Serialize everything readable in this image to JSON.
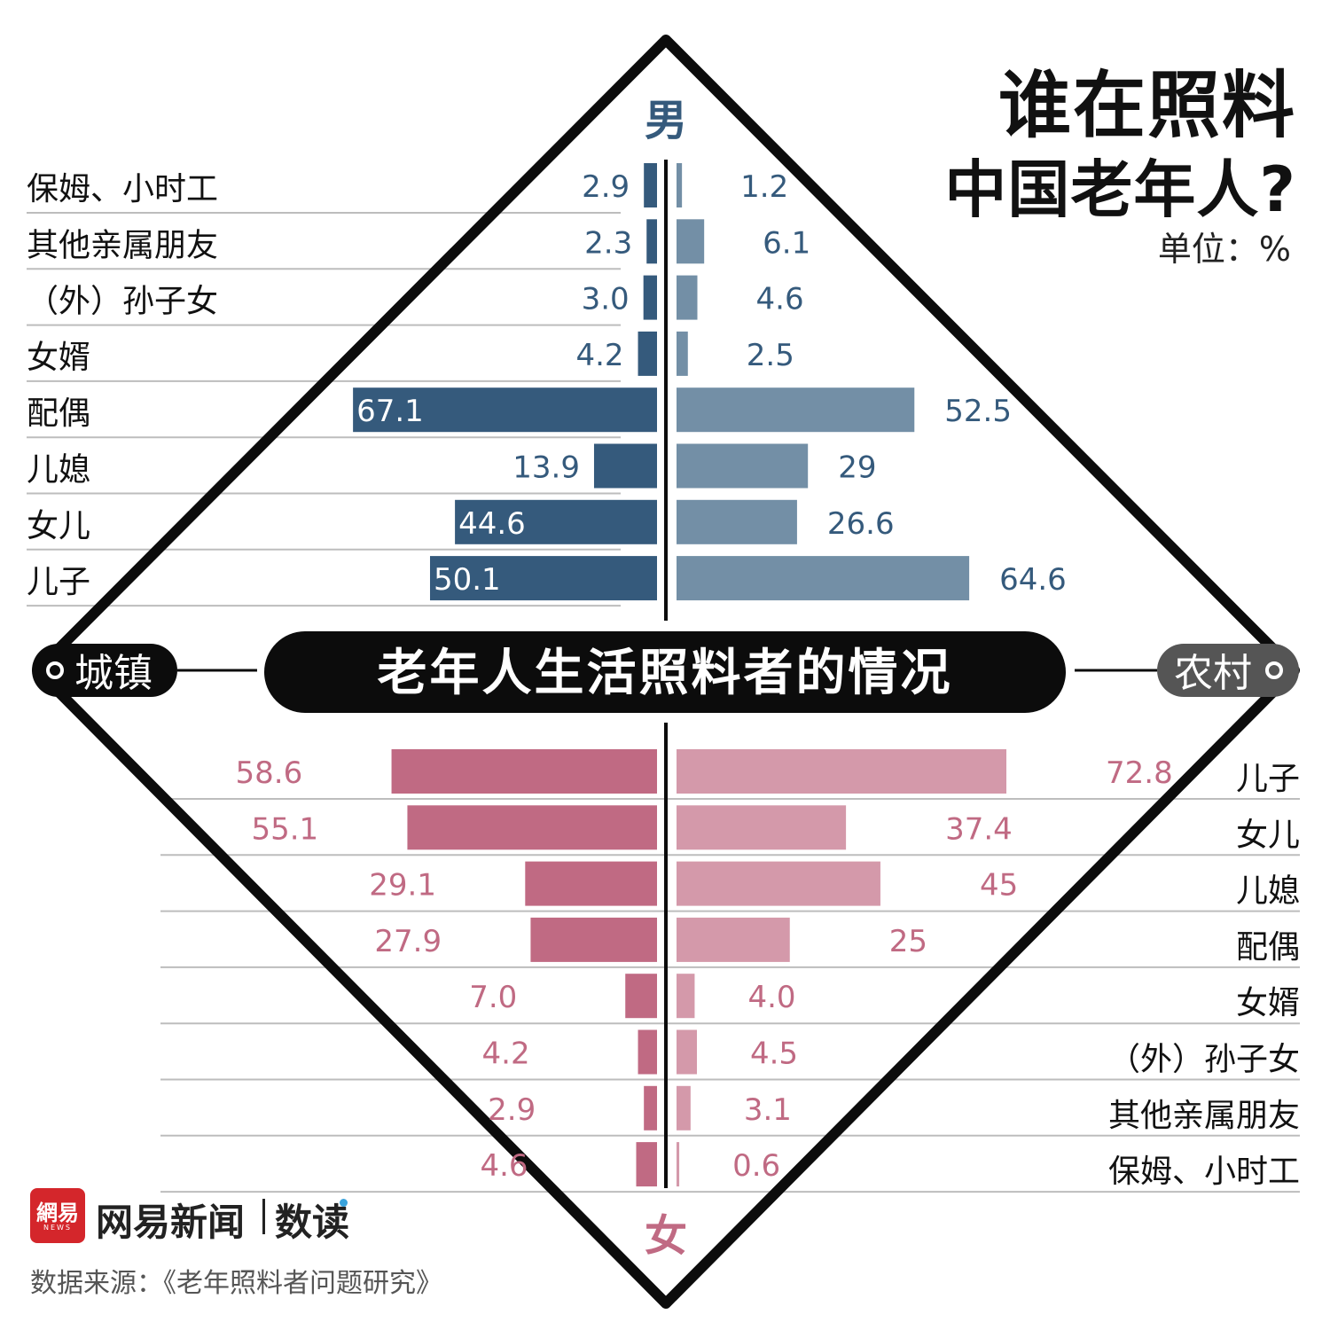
{
  "title_line1": "谁在照料",
  "title_line2": "中国老年人?",
  "unit": "单位：%",
  "center_label": "老年人生活照料者的情况",
  "left_tag": "城镇",
  "right_tag": "农村",
  "top_tag": "男",
  "bottom_tag": "女",
  "brand": "网易新闻",
  "brand2": "数读",
  "logo_text": "網易",
  "logo_sub": "NEWS",
  "source": "数据来源：《老年照料者问题研究》",
  "colors": {
    "male_urban": "#355a7c",
    "male_rural": "#738fa6",
    "female_urban": "#c06a83",
    "female_rural": "#d499aa",
    "male_text": "#355a7c",
    "female_text": "#c06a83"
  },
  "chart_data": [
    {
      "type": "bar",
      "orientation": "horizontal",
      "title": "男",
      "categories": [
        "保姆、小时工",
        "其他亲属朋友",
        "（外）孙子女",
        "女婿",
        "配偶",
        "儿媳",
        "女儿",
        "儿子"
      ],
      "value_labels": {
        "城镇": [
          "2.9",
          "2.3",
          "3.0",
          "4.2",
          "67.1",
          "13.9",
          "44.6",
          "50.1"
        ],
        "农村": [
          "1.2",
          "6.1",
          "4.6",
          "2.5",
          "52.5",
          "29",
          "26.6",
          "64.6"
        ]
      },
      "series": [
        {
          "name": "城镇",
          "values": [
            2.9,
            2.3,
            3.0,
            4.2,
            67.1,
            13.9,
            44.6,
            50.1
          ]
        },
        {
          "name": "农村",
          "values": [
            1.2,
            6.1,
            4.6,
            2.5,
            52.5,
            29,
            26.6,
            64.6
          ]
        }
      ]
    },
    {
      "type": "bar",
      "orientation": "horizontal",
      "title": "女",
      "categories": [
        "儿子",
        "女儿",
        "儿媳",
        "配偶",
        "女婿",
        "（外）孙子女",
        "其他亲属朋友",
        "保姆、小时工"
      ],
      "value_labels": {
        "城镇": [
          "58.6",
          "55.1",
          "29.1",
          "27.9",
          "7.0",
          "4.2",
          "2.9",
          "4.6"
        ],
        "农村": [
          "72.8",
          "37.4",
          "45",
          "25",
          "4.0",
          "4.5",
          "3.1",
          "0.6"
        ]
      },
      "series": [
        {
          "name": "城镇",
          "values": [
            58.6,
            55.1,
            29.1,
            27.9,
            7.0,
            4.2,
            2.9,
            4.6
          ]
        },
        {
          "name": "农村",
          "values": [
            72.8,
            37.4,
            45,
            25,
            4.0,
            4.5,
            3.1,
            0.6
          ]
        }
      ]
    }
  ]
}
